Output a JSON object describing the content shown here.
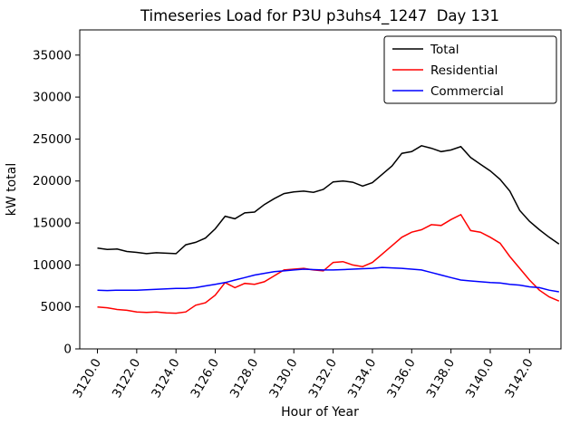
{
  "chart_data": {
    "type": "line",
    "title": "Timeseries Load for P3U p3uhs4_1247  Day 131",
    "xlabel": "Hour of Year",
    "ylabel": "kW total",
    "xlim": [
      3119.1,
      3143.6
    ],
    "ylim": [
      0,
      38000
    ],
    "grid": false,
    "legend_position": "upper right",
    "yticks": [
      0,
      5000,
      10000,
      15000,
      20000,
      25000,
      30000,
      35000
    ],
    "xticks": [
      3120,
      3122,
      3124,
      3126,
      3128,
      3130,
      3132,
      3134,
      3136,
      3138,
      3140,
      3142
    ],
    "xtick_labels": [
      "3120.0",
      "3122.0",
      "3124.0",
      "3126.0",
      "3128.0",
      "3130.0",
      "3132.0",
      "3134.0",
      "3136.0",
      "3138.0",
      "3140.0",
      "3142.0"
    ],
    "x": [
      3120.0,
      3120.5,
      3121.0,
      3121.5,
      3122.0,
      3122.5,
      3123.0,
      3123.5,
      3124.0,
      3124.5,
      3125.0,
      3125.5,
      3126.0,
      3126.5,
      3127.0,
      3127.5,
      3128.0,
      3128.5,
      3129.0,
      3129.5,
      3130.0,
      3130.5,
      3131.0,
      3131.5,
      3132.0,
      3132.5,
      3133.0,
      3133.5,
      3134.0,
      3134.5,
      3135.0,
      3135.5,
      3136.0,
      3136.5,
      3137.0,
      3137.5,
      3138.0,
      3138.5,
      3139.0,
      3139.5,
      3140.0,
      3140.5,
      3141.0,
      3141.5,
      3142.0,
      3142.5,
      3143.0,
      3143.5
    ],
    "series": [
      {
        "name": "Total",
        "color": "#000000",
        "values": [
          12000,
          11850,
          11900,
          11600,
          11500,
          11350,
          11450,
          11400,
          11350,
          12400,
          12700,
          13200,
          14300,
          15800,
          15500,
          16200,
          16300,
          17200,
          17900,
          18500,
          18700,
          18800,
          18650,
          19000,
          19900,
          20000,
          19850,
          19400,
          19800,
          20800,
          21800,
          23300,
          23500,
          24200,
          23900,
          23500,
          23700,
          24100,
          22800,
          22000,
          21200,
          20200,
          18800,
          16500,
          15200,
          14200,
          13300,
          12500
        ]
      },
      {
        "name": "Residential",
        "color": "#ff0000",
        "values": [
          5000,
          4900,
          4700,
          4600,
          4400,
          4350,
          4400,
          4300,
          4250,
          4400,
          5200,
          5500,
          6400,
          7900,
          7300,
          7800,
          7700,
          8000,
          8700,
          9400,
          9500,
          9600,
          9400,
          9300,
          10300,
          10400,
          10000,
          9800,
          10300,
          11300,
          12300,
          13300,
          13900,
          14200,
          14800,
          14700,
          15400,
          16000,
          14100,
          13900,
          13300,
          12600,
          11000,
          9600,
          8200,
          7000,
          6200,
          5700
        ]
      },
      {
        "name": "Commercial",
        "color": "#0000ff",
        "values": [
          7000,
          6950,
          7000,
          6980,
          7000,
          7050,
          7100,
          7150,
          7200,
          7200,
          7300,
          7500,
          7700,
          7900,
          8200,
          8500,
          8800,
          9000,
          9200,
          9300,
          9400,
          9500,
          9450,
          9400,
          9400,
          9450,
          9500,
          9550,
          9600,
          9700,
          9650,
          9600,
          9500,
          9400,
          9100,
          8800,
          8500,
          8200,
          8100,
          8000,
          7900,
          7850,
          7700,
          7600,
          7400,
          7300,
          7000,
          6800
        ]
      }
    ]
  }
}
